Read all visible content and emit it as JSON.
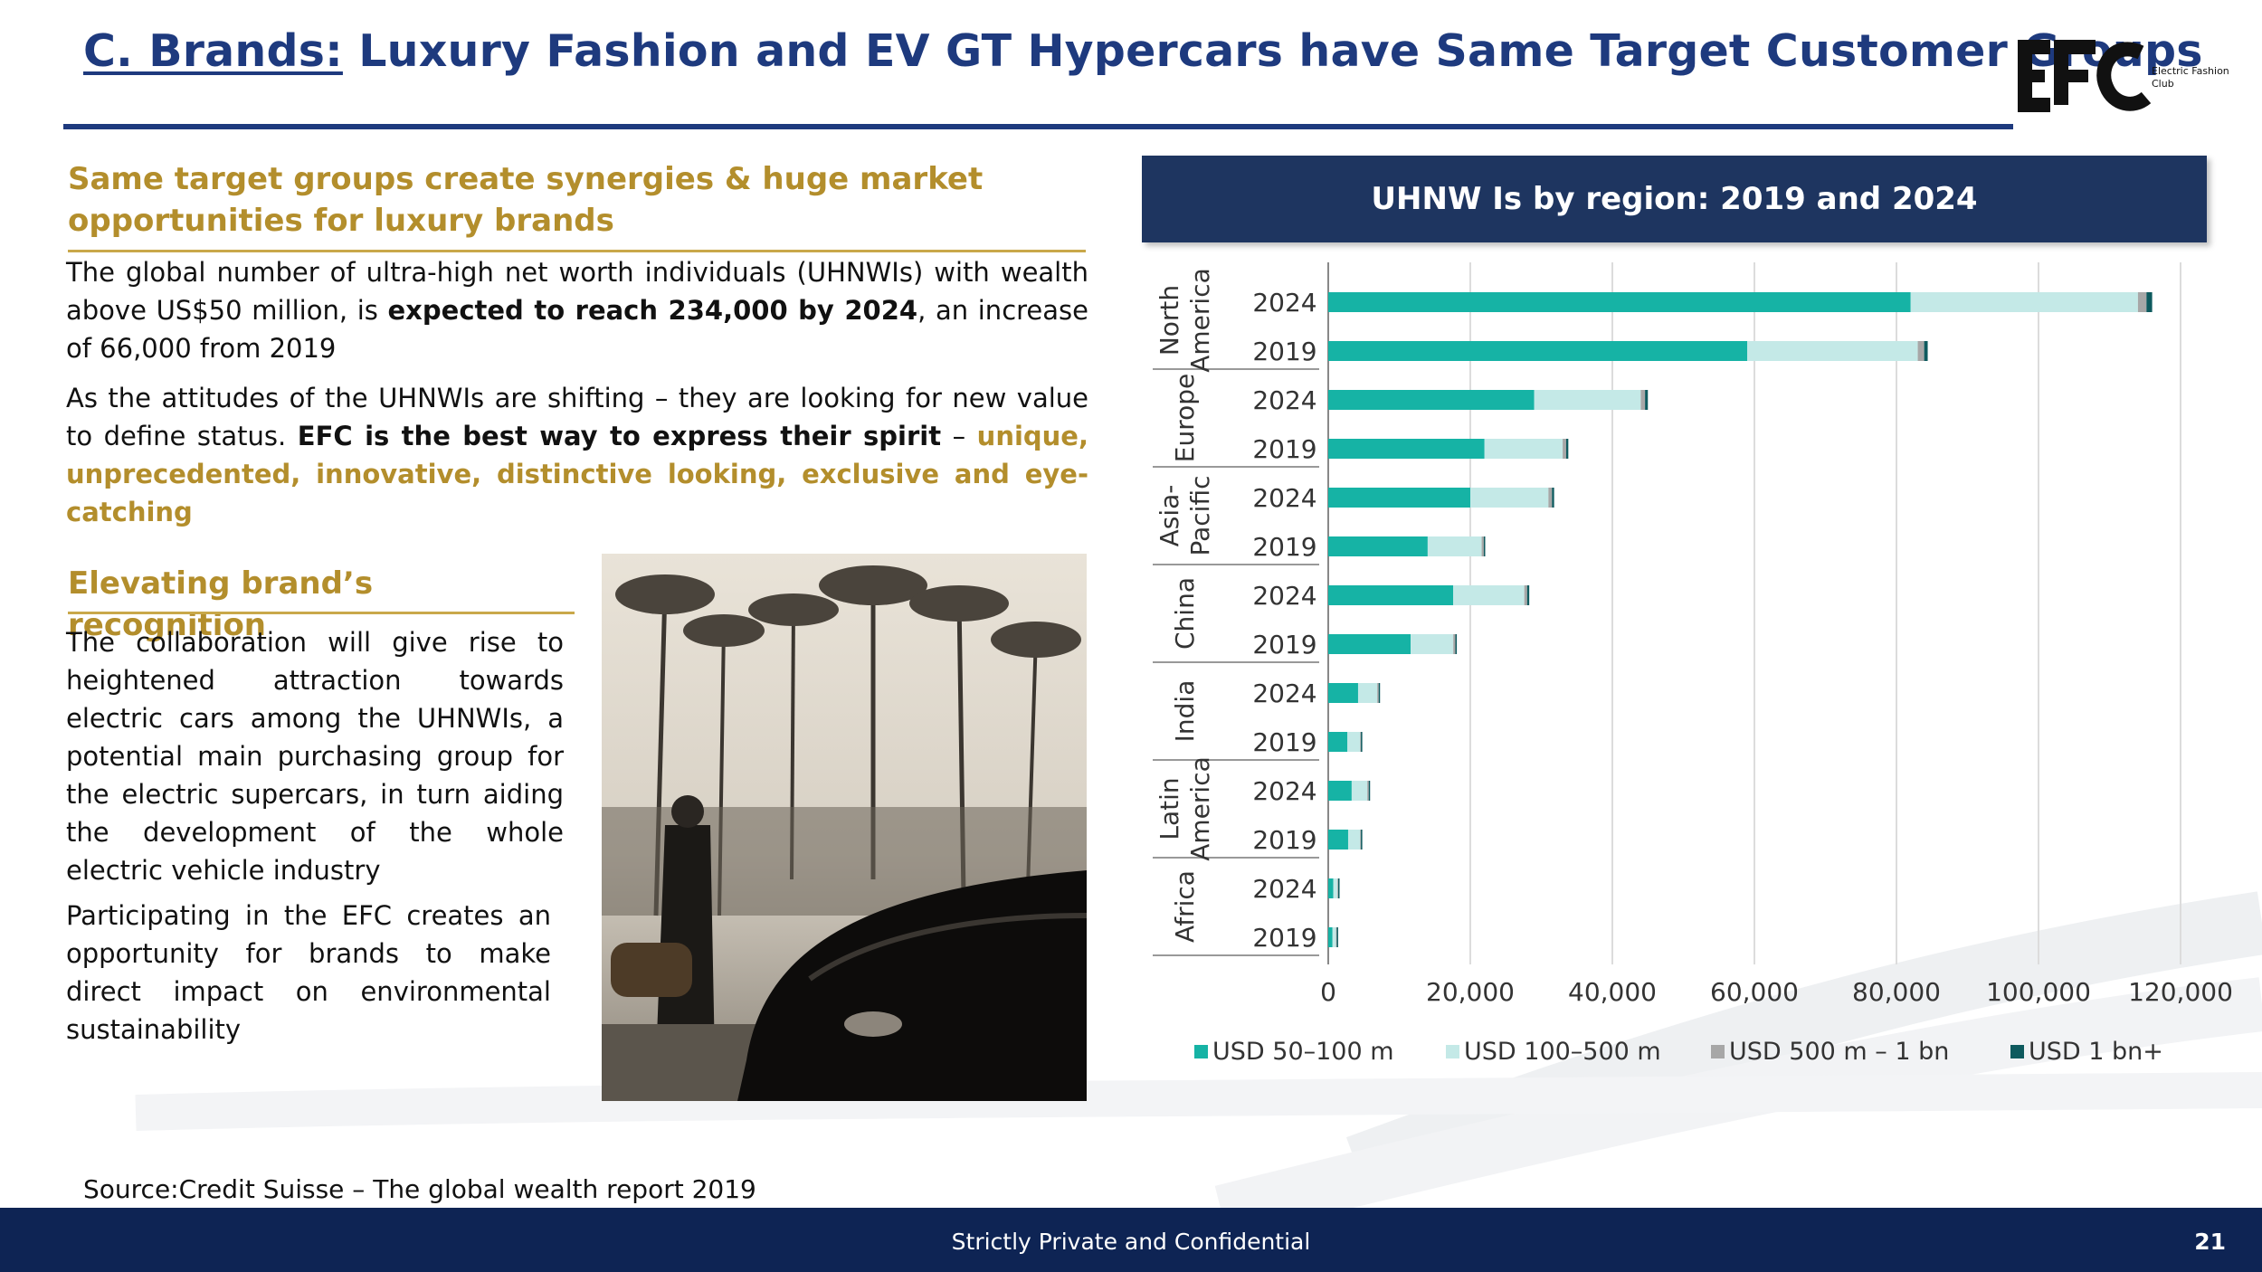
{
  "slide": {
    "title_prefix": "C. Brands:",
    "title_rest": " Luxury Fashion and EV GT Hypercars have Same Target Customer Groups",
    "logo_text": "EFC",
    "logo_sub_1": "Electric Fashion",
    "logo_sub_2": "Club"
  },
  "section1": {
    "heading_line1": "Same target groups create synergies & huge market",
    "heading_line2": "opportunities for luxury brands",
    "p1_a": "The global number of ultra-high net worth individuals (UHNWIs) with wealth above US$50 million, is ",
    "p1_b": "expected to reach 234,000 by 2024",
    "p1_c": ", an increase of 66,000 from 2019",
    "p2_a": "As the attitudes of the UHNWIs are shifting – they are looking for new value to define status. ",
    "p2_b": "EFC is the best way to express their spirit",
    "p2_c": " – ",
    "p2_d": "unique, unprecedented, innovative, distinctive looking, exclusive and eye-catching"
  },
  "section2": {
    "heading": "Elevating brand’s recognition",
    "p1": "The collaboration will give rise to heightened attraction towards electric cars among the UHNWIs, a potential main purchasing group for the electric supercars, in turn aiding the development of the whole electric vehicle industry",
    "p2": "Participating in the EFC creates an opportunity for brands to make direct impact on environmental sustainability"
  },
  "chart_header": "UHNW Is by region: 2019 and 2024",
  "chart_data": {
    "type": "bar",
    "orientation": "horizontal",
    "stacked": true,
    "groups": [
      {
        "region": "North America",
        "rows": [
          {
            "year": "2024",
            "values": [
              82000,
              32000,
              1200,
              800
            ]
          },
          {
            "year": "2019",
            "values": [
              59000,
              24000,
              900,
              500
            ]
          }
        ]
      },
      {
        "region": "Europe",
        "rows": [
          {
            "year": "2024",
            "values": [
              29000,
              15000,
              600,
              400
            ]
          },
          {
            "year": "2019",
            "values": [
              22000,
              11000,
              500,
              300
            ]
          }
        ]
      },
      {
        "region": "Asia-Pacific",
        "rows": [
          {
            "year": "2024",
            "values": [
              20000,
              11000,
              500,
              300
            ]
          },
          {
            "year": "2019",
            "values": [
              14000,
              7600,
              300,
              200
            ]
          }
        ]
      },
      {
        "region": "China",
        "rows": [
          {
            "year": "2024",
            "values": [
              17600,
              10000,
              400,
              300
            ]
          },
          {
            "year": "2019",
            "values": [
              11600,
              6000,
              300,
              200
            ]
          }
        ]
      },
      {
        "region": "India",
        "rows": [
          {
            "year": "2024",
            "values": [
              4200,
              2700,
              200,
              100
            ]
          },
          {
            "year": "2019",
            "values": [
              2700,
              1800,
              100,
              100
            ]
          }
        ]
      },
      {
        "region": "Latin America",
        "rows": [
          {
            "year": "2024",
            "values": [
              3300,
              2200,
              200,
              100
            ]
          },
          {
            "year": "2019",
            "values": [
              2800,
              1700,
              100,
              100
            ]
          }
        ]
      },
      {
        "region": "Africa",
        "rows": [
          {
            "year": "2024",
            "values": [
              700,
              600,
              100,
              50
            ]
          },
          {
            "year": "2019",
            "values": [
              600,
              500,
              100,
              50
            ]
          }
        ]
      }
    ],
    "series": [
      {
        "name": "USD 50–100 m",
        "color": "#16b3a5"
      },
      {
        "name": "USD 100–500 m",
        "color": "#c4e9e7"
      },
      {
        "name": "USD 500 m – 1 bn",
        "color": "#a7a7a7"
      },
      {
        "name": "USD 1 bn+",
        "color": "#0e5a5e"
      }
    ],
    "xlim": [
      0,
      120000
    ],
    "xticks": [
      0,
      20000,
      40000,
      60000,
      80000,
      100000,
      120000
    ],
    "xtick_labels": [
      "0",
      "20,000",
      "40,000",
      "60,000",
      "80,000",
      "100,000",
      "120,000"
    ],
    "grid": true,
    "legend_position": "bottom"
  },
  "source": "Source:Credit Suisse – The global wealth report 2019",
  "footer": {
    "text": "Strictly Private and Confidential",
    "page": "21"
  }
}
